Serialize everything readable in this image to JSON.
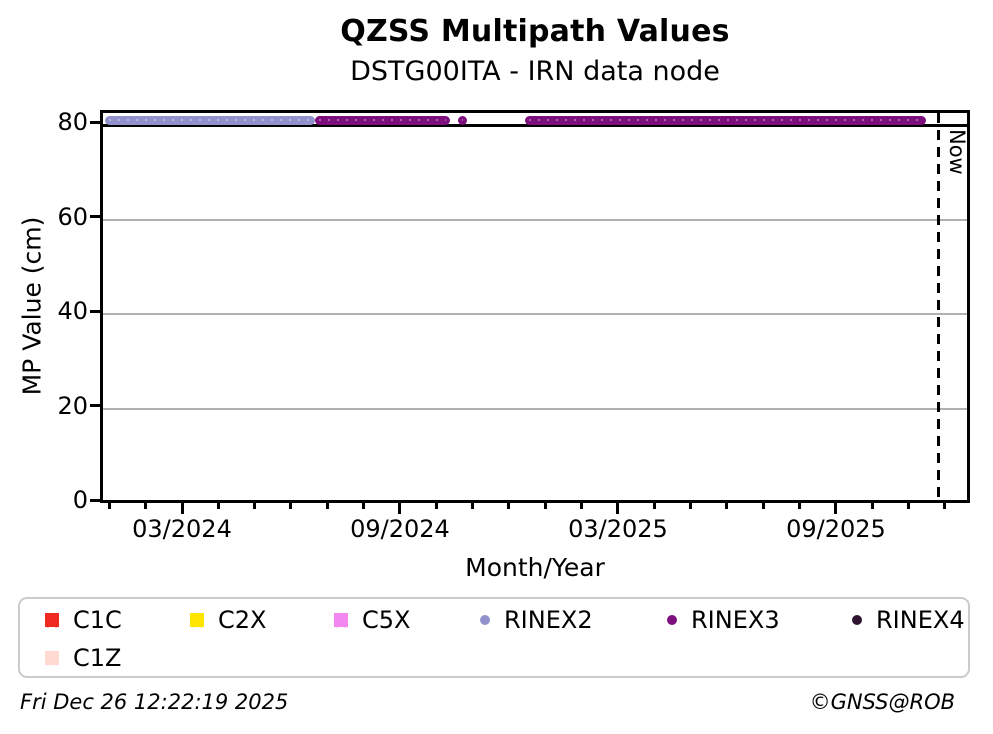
{
  "title": "QZSS Multipath Values",
  "subtitle": "DSTG00ITA - IRN data node",
  "footer": {
    "timestamp": "Fri Dec 26 12:22:19 2025",
    "credit": "©GNSS@ROB"
  },
  "chart_data": {
    "type": "scatter",
    "title": "QZSS Multipath Values",
    "subtitle": "DSTG00ITA - IRN data node",
    "xlabel": "Month/Year",
    "ylabel": "MP Value (cm)",
    "ylim": [
      0,
      83
    ],
    "yticks": [
      0,
      20,
      40,
      60,
      80
    ],
    "ygrid_minor_color": "#b0b0b0",
    "ygrid_values_gray": [
      20,
      40,
      60
    ],
    "ygrid_value_black": 80,
    "xtick_major_labels": [
      "03/2024",
      "09/2024",
      "03/2025",
      "09/2025"
    ],
    "xtick_minor_unit": "month",
    "x_range_approx": [
      "2023-12",
      "2025-12"
    ],
    "now_line": {
      "label": "Now",
      "x_frac": 0.963,
      "style": "dashed-black",
      "date_approx": "2025-12"
    },
    "legend_position": "bottom",
    "series": [
      {
        "name": "C1C",
        "marker": "x",
        "color": "#ee2a23",
        "mp_value_cm": null,
        "coverage": [],
        "segments_frac": []
      },
      {
        "name": "C2X",
        "marker": "x",
        "color": "#ffe400",
        "mp_value_cm": null,
        "coverage": [],
        "segments_frac": []
      },
      {
        "name": "C5X",
        "marker": "x",
        "color": "#f287ef",
        "mp_value_cm": null,
        "coverage": [],
        "segments_frac": []
      },
      {
        "name": "RINEX2",
        "marker": "circle",
        "color": "#9191ce",
        "mp_value_cm": 81.5,
        "coverage": [
          [
            "2023-12",
            "2024-06"
          ]
        ],
        "segments_frac": [
          [
            0.006,
            0.247
          ]
        ]
      },
      {
        "name": "RINEX3",
        "marker": "circle",
        "color": "#7d0e7d",
        "mp_value_cm": 81.5,
        "coverage": [
          [
            "2024-06",
            "2024-10"
          ],
          [
            "2024-11",
            "2024-11"
          ],
          [
            "2024-12",
            "2025-11"
          ]
        ],
        "segments_frac": [
          [
            0.247,
            0.402
          ],
          [
            0.412,
            0.422
          ],
          [
            0.489,
            0.95
          ]
        ]
      },
      {
        "name": "RINEX4",
        "marker": "circle",
        "color": "#301330",
        "mp_value_cm": null,
        "coverage": [],
        "segments_frac": []
      },
      {
        "name": "C1Z",
        "marker": "x",
        "color": "#ffd9d2",
        "mp_value_cm": null,
        "coverage": [],
        "segments_frac": []
      }
    ],
    "legend_entries": [
      "C1C",
      "C2X",
      "C5X",
      "RINEX2",
      "RINEX3",
      "RINEX4",
      "C1Z"
    ],
    "constant_band_value_cm": 81.5
  }
}
